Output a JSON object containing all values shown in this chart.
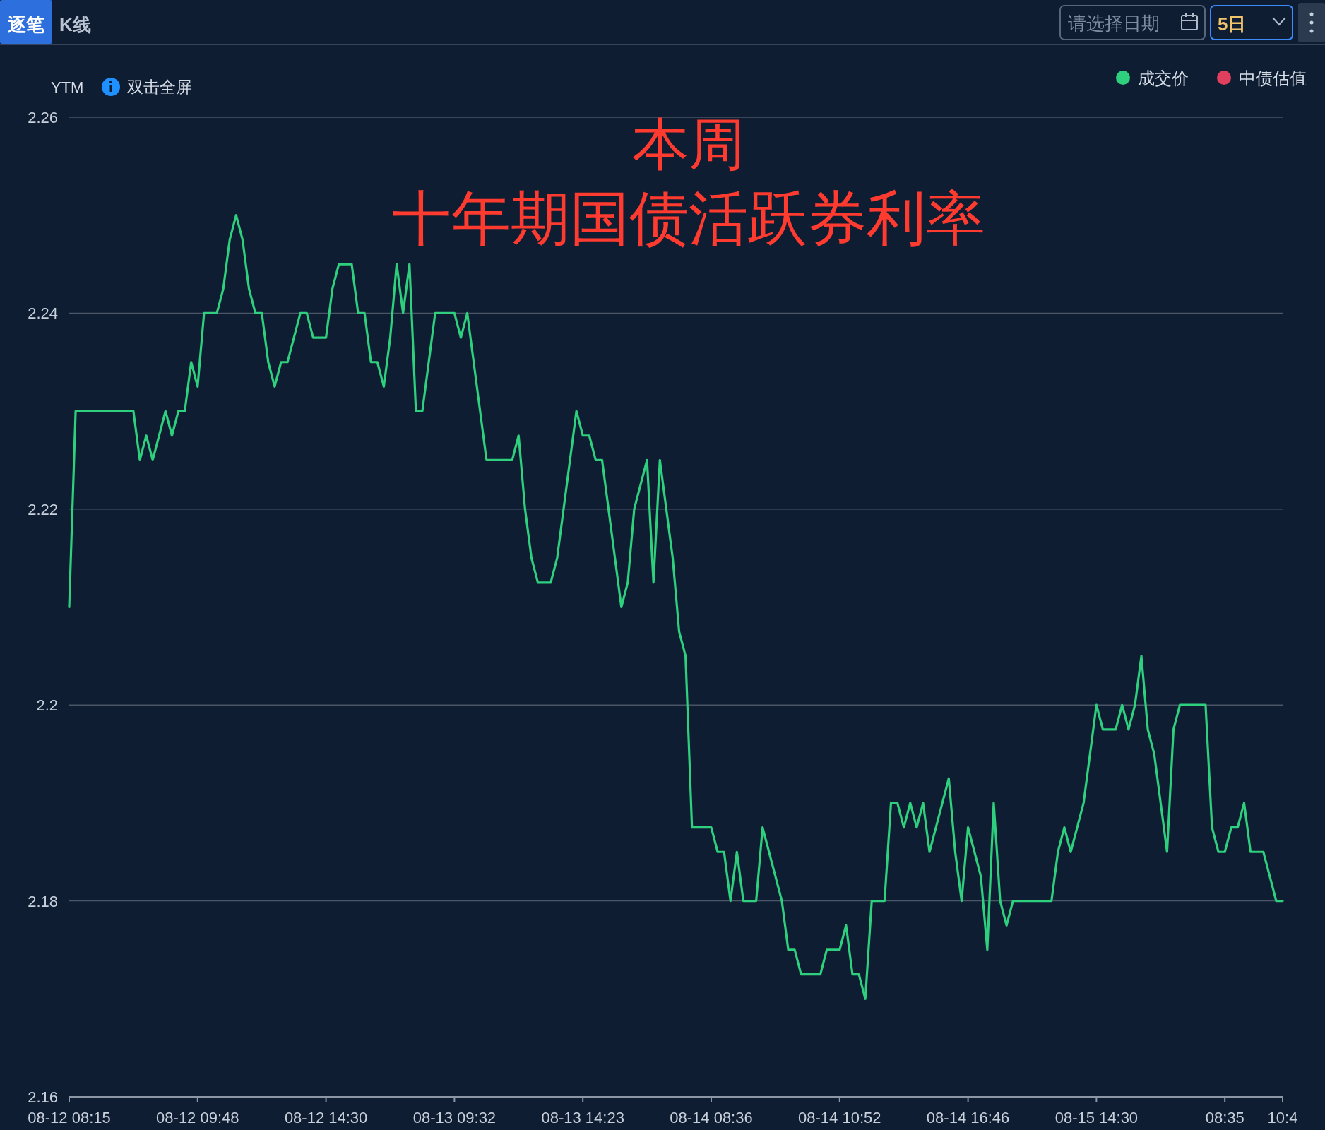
{
  "chart_data": {
    "type": "line",
    "title": "本周",
    "subtitle": "十年期国债活跃券利率",
    "ylabel": "YTM",
    "annotations": [
      "逐笔",
      "K线",
      "请选择日期",
      "5日",
      "双击全屏"
    ],
    "categories": [
      "08-12 08:15",
      null,
      null,
      null,
      null,
      null,
      null,
      null,
      null,
      null,
      null,
      null,
      null,
      null,
      null,
      null,
      null,
      null,
      null,
      null,
      "08-12 09:48",
      null,
      null,
      null,
      null,
      null,
      null,
      null,
      null,
      null,
      null,
      null,
      null,
      null,
      null,
      null,
      null,
      null,
      null,
      null,
      "08-12 14:30",
      null,
      null,
      null,
      null,
      null,
      null,
      null,
      null,
      null,
      null,
      null,
      null,
      null,
      null,
      null,
      null,
      null,
      null,
      null,
      "08-13 09:32",
      null,
      null,
      null,
      null,
      null,
      null,
      null,
      null,
      null,
      null,
      null,
      null,
      null,
      null,
      null,
      null,
      null,
      null,
      null,
      "08-13 14:23",
      null,
      null,
      null,
      null,
      null,
      null,
      null,
      null,
      null,
      null,
      null,
      null,
      null,
      null,
      null,
      null,
      null,
      null,
      null,
      "08-14 08:36",
      null,
      null,
      null,
      null,
      null,
      null,
      null,
      null,
      null,
      null,
      null,
      null,
      null,
      null,
      null,
      null,
      null,
      null,
      null,
      "08-14 10:52",
      null,
      null,
      null,
      null,
      null,
      null,
      null,
      null,
      null,
      null,
      null,
      null,
      null,
      null,
      null,
      null,
      null,
      null,
      null,
      "08-14 16:46",
      null,
      null,
      null,
      null,
      null,
      null,
      null,
      null,
      null,
      null,
      null,
      null,
      null,
      null,
      null,
      null,
      null,
      null,
      null,
      "08-15 14:30",
      null,
      null,
      null,
      null,
      null,
      null,
      null,
      null,
      null,
      null,
      null,
      null,
      null,
      null,
      null,
      null,
      null,
      null,
      null,
      "08:35",
      null,
      null,
      null,
      null,
      null,
      null,
      null,
      null,
      "10:4"
    ],
    "series": [
      {
        "name": "成交价",
        "color": "#2ecf7d",
        "values": [
          2.21,
          2.23,
          2.23,
          2.23,
          2.23,
          2.23,
          2.23,
          2.23,
          2.23,
          2.23,
          2.23,
          2.225,
          2.2275,
          2.225,
          2.2275,
          2.23,
          2.2275,
          2.23,
          2.23,
          2.235,
          2.2325,
          2.24,
          2.24,
          2.24,
          2.2425,
          2.2475,
          2.25,
          2.2475,
          2.2425,
          2.24,
          2.24,
          2.235,
          2.2325,
          2.235,
          2.235,
          2.2375,
          2.24,
          2.24,
          2.2375,
          2.2375,
          2.2375,
          2.2425,
          2.245,
          2.245,
          2.245,
          2.24,
          2.24,
          2.235,
          2.235,
          2.2325,
          2.2375,
          2.245,
          2.24,
          2.245,
          2.23,
          2.23,
          2.235,
          2.24,
          2.24,
          2.24,
          2.24,
          2.2375,
          2.24,
          2.235,
          2.23,
          2.225,
          2.225,
          2.225,
          2.225,
          2.225,
          2.2275,
          2.22,
          2.215,
          2.2125,
          2.2125,
          2.2125,
          2.215,
          2.22,
          2.225,
          2.23,
          2.2275,
          2.2275,
          2.225,
          2.225,
          2.22,
          2.215,
          2.21,
          2.2125,
          2.22,
          2.2225,
          2.225,
          2.2125,
          2.225,
          2.22,
          2.215,
          2.2075,
          2.205,
          2.1875,
          2.1875,
          2.1875,
          2.1875,
          2.185,
          2.185,
          2.18,
          2.185,
          2.18,
          2.18,
          2.18,
          2.1875,
          2.185,
          2.1825,
          2.18,
          2.175,
          2.175,
          2.1725,
          2.1725,
          2.1725,
          2.1725,
          2.175,
          2.175,
          2.175,
          2.1775,
          2.1725,
          2.1725,
          2.17,
          2.18,
          2.18,
          2.18,
          2.19,
          2.19,
          2.1875,
          2.19,
          2.1875,
          2.19,
          2.185,
          2.1875,
          2.19,
          2.1925,
          2.185,
          2.18,
          2.1875,
          2.185,
          2.1825,
          2.175,
          2.19,
          2.18,
          2.1775,
          2.18,
          2.18,
          2.18,
          2.18,
          2.18,
          2.18,
          2.18,
          2.185,
          2.1875,
          2.185,
          2.1875,
          2.19,
          2.195,
          2.2,
          2.1975,
          2.1975,
          2.1975,
          2.2,
          2.1975,
          2.2,
          2.205,
          2.1975,
          2.195,
          2.19,
          2.185,
          2.1975,
          2.2,
          2.2,
          2.2,
          2.2,
          2.2,
          2.1875,
          2.185,
          2.185,
          2.1875,
          2.1875,
          2.19,
          2.185,
          2.185,
          2.185,
          2.1825,
          2.18,
          2.18
        ]
      },
      {
        "name": "中债估值",
        "color": "#e0405e",
        "values": [
          null,
          null,
          null,
          null,
          null,
          null,
          null,
          null,
          null,
          null,
          null,
          null,
          null,
          null,
          null,
          null,
          null,
          null,
          null,
          null,
          null,
          null,
          null,
          null,
          null,
          null,
          null,
          null,
          null,
          null,
          null,
          null,
          null,
          null,
          null,
          null,
          null,
          null,
          null,
          null,
          null,
          null,
          null,
          null,
          null,
          null,
          null,
          null,
          null,
          null,
          null,
          null,
          null,
          null,
          null,
          null,
          null,
          null,
          null,
          null,
          null,
          null,
          null,
          null,
          null,
          null,
          null,
          null,
          null,
          null,
          null,
          null,
          null,
          null,
          null,
          null,
          null,
          null,
          null,
          null,
          null,
          null,
          null,
          null,
          null,
          null,
          null,
          null,
          null,
          null,
          null,
          null,
          null,
          null,
          null,
          null,
          null,
          null,
          null,
          null,
          null,
          null,
          null,
          null,
          null,
          null,
          null,
          null,
          null,
          null,
          null,
          null,
          null,
          null,
          null,
          null,
          null,
          null,
          null,
          null,
          null,
          null,
          null,
          null,
          null,
          null,
          null,
          null,
          null,
          null,
          null,
          null,
          null,
          null,
          null,
          null,
          null,
          null,
          null,
          null,
          null,
          null,
          null,
          null,
          null,
          null,
          null,
          null,
          null,
          null,
          null,
          null,
          null,
          null,
          null,
          null,
          null,
          null,
          null,
          null,
          null,
          null,
          null,
          null,
          null,
          null,
          null,
          null,
          null,
          null,
          null,
          null,
          null,
          null,
          null,
          null,
          null,
          null,
          null,
          null,
          null,
          null,
          null,
          null,
          null,
          null,
          null,
          null,
          null,
          null
        ]
      }
    ],
    "ylim": [
      2.16,
      2.26
    ],
    "yticks": [
      2.16,
      2.18,
      2.2,
      2.22,
      2.24,
      2.26
    ],
    "grid": "y",
    "legend": "top right"
  }
}
